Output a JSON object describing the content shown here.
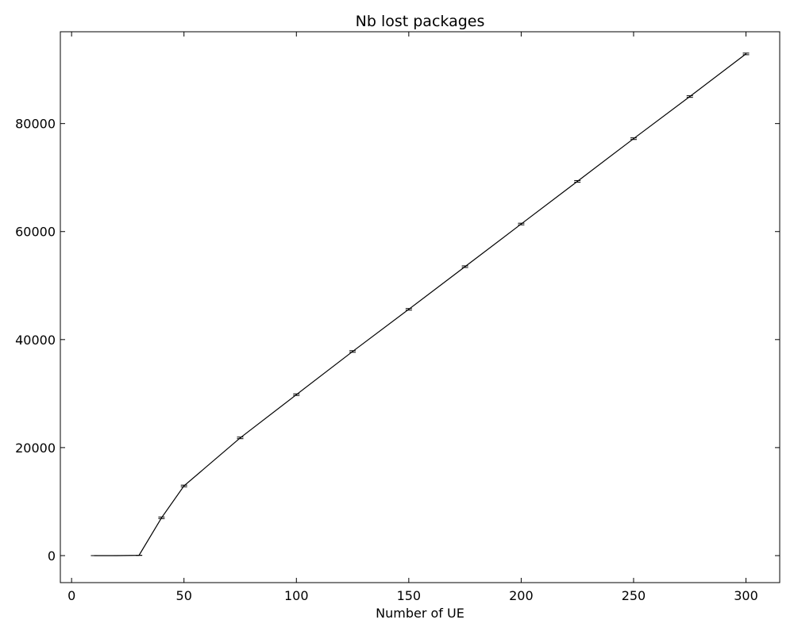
{
  "chart_data": {
    "type": "line",
    "title": "Nb lost packages",
    "xlabel": "Number of UE",
    "ylabel": "",
    "xlim": [
      -5,
      315
    ],
    "ylim": [
      -5000,
      97000
    ],
    "x_ticks": [
      0,
      50,
      100,
      150,
      200,
      250,
      300
    ],
    "y_ticks": [
      0,
      20000,
      40000,
      60000,
      80000
    ],
    "x_tick_labels": [
      "0",
      "50",
      "100",
      "150",
      "200",
      "250",
      "300"
    ],
    "y_tick_labels": [
      "0",
      "20000",
      "40000",
      "60000",
      "80000"
    ],
    "grid": false,
    "legend": "none",
    "series": [
      {
        "color": "#000000",
        "x": [
          10,
          20,
          30,
          40,
          50,
          75,
          100,
          125,
          150,
          175,
          200,
          225,
          250,
          275,
          300
        ],
        "y": [
          0,
          0,
          50,
          7000,
          12900,
          21800,
          29800,
          37800,
          45600,
          53500,
          61400,
          69300,
          77200,
          85000,
          92900
        ],
        "error": [
          0,
          0,
          0,
          150,
          150,
          150,
          150,
          150,
          150,
          150,
          150,
          150,
          150,
          150,
          150
        ]
      }
    ]
  }
}
